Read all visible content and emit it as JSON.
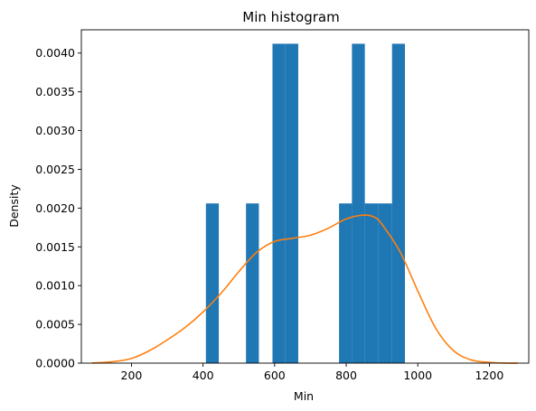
{
  "chart_data": {
    "type": "bar",
    "title": "Min histogram",
    "xlabel": "Min",
    "ylabel": "Density",
    "xlim": [
      60,
      1310
    ],
    "ylim": [
      0,
      0.0043
    ],
    "xticks": [
      200,
      400,
      600,
      800,
      1000,
      1200
    ],
    "yticks": [
      0.0,
      0.0005,
      0.001,
      0.0015,
      0.002,
      0.0025,
      0.003,
      0.0035,
      0.004
    ],
    "ytick_labels": [
      "0.0000",
      "0.0005",
      "0.0010",
      "0.0015",
      "0.0020",
      "0.0025",
      "0.0030",
      "0.0035",
      "0.0040"
    ],
    "xtick_labels": [
      "200",
      "400",
      "600",
      "800",
      "1000",
      "1200"
    ],
    "grid": false,
    "histogram": {
      "color": "#1f77b4",
      "bins": [
        {
          "x0": 408,
          "x1": 444,
          "density": 0.00206
        },
        {
          "x0": 444,
          "x1": 480,
          "density": 0
        },
        {
          "x0": 480,
          "x1": 520,
          "density": 0
        },
        {
          "x0": 520,
          "x1": 556,
          "density": 0.00206
        },
        {
          "x0": 556,
          "x1": 594,
          "density": 0
        },
        {
          "x0": 594,
          "x1": 630,
          "density": 0.00412
        },
        {
          "x0": 630,
          "x1": 666,
          "density": 0.00412
        },
        {
          "x0": 666,
          "x1": 706,
          "density": 0
        },
        {
          "x0": 706,
          "x1": 742,
          "density": 0
        },
        {
          "x0": 742,
          "x1": 780,
          "density": 0
        },
        {
          "x0": 780,
          "x1": 816,
          "density": 0.00206
        },
        {
          "x0": 816,
          "x1": 852,
          "density": 0.00412
        },
        {
          "x0": 852,
          "x1": 890,
          "density": 0.00206
        },
        {
          "x0": 890,
          "x1": 928,
          "density": 0.00206
        },
        {
          "x0": 928,
          "x1": 964,
          "density": 0.00412
        }
      ]
    },
    "kde": {
      "color": "#ff7f0e",
      "x": [
        90,
        150,
        200,
        250,
        300,
        350,
        400,
        450,
        500,
        550,
        600,
        650,
        700,
        750,
        800,
        850,
        880,
        900,
        950,
        1000,
        1050,
        1100,
        1150,
        1200,
        1250,
        1280
      ],
      "y": [
        0.0,
        2e-05,
        6e-05,
        0.00016,
        0.0003,
        0.00046,
        0.00066,
        0.0009,
        0.00118,
        0.00143,
        0.00157,
        0.00161,
        0.00165,
        0.00174,
        0.00186,
        0.00191,
        0.00188,
        0.00179,
        0.00144,
        0.00093,
        0.00045,
        0.00016,
        4e-05,
        1e-05,
        0.0,
        0.0
      ]
    }
  }
}
